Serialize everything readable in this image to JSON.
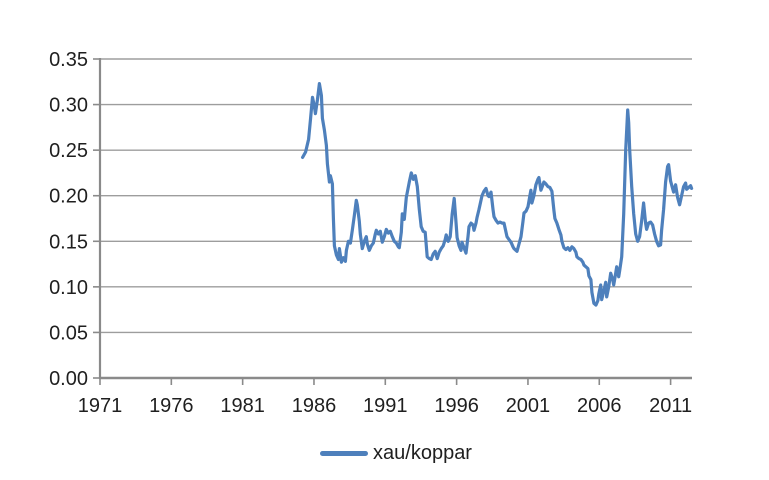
{
  "legend": {
    "label": "xau/koppar"
  },
  "colors": {
    "line": "#4E80BC",
    "grid": "#9D9D9D",
    "axis": "#8A8A8A",
    "text": "#1F1F1F",
    "background": "#FFFFFF"
  },
  "chart_data": {
    "type": "line",
    "title": "",
    "xlabel": "",
    "ylabel": "",
    "grid": "horizontal",
    "legend_position": "bottom-center",
    "x_tick_labels": [
      "1971",
      "1976",
      "1981",
      "1986",
      "1991",
      "1996",
      "2001",
      "2006",
      "2011"
    ],
    "x_tick_values": [
      1971,
      1976,
      1981,
      1986,
      1991,
      1996,
      2001,
      2006,
      2011
    ],
    "y_tick_labels": [
      "0.00",
      "0.05",
      "0.10",
      "0.15",
      "0.20",
      "0.25",
      "0.30",
      "0.35"
    ],
    "y_tick_values": [
      0.0,
      0.05,
      0.1,
      0.15,
      0.2,
      0.25,
      0.3,
      0.35
    ],
    "xlim": [
      1971,
      2012.5
    ],
    "ylim": [
      0,
      0.35
    ],
    "series": [
      {
        "name": "xau/koppar",
        "color": "#4E80BC",
        "x": [
          1985.2,
          1985.41,
          1985.62,
          1985.76,
          1985.9,
          1986.03,
          1986.1,
          1986.24,
          1986.38,
          1986.52,
          1986.59,
          1986.73,
          1986.87,
          1986.94,
          1987.08,
          1987.15,
          1987.29,
          1987.36,
          1987.43,
          1987.57,
          1987.71,
          1987.78,
          1987.92,
          1988.06,
          1988.2,
          1988.27,
          1988.41,
          1988.55,
          1988.69,
          1988.83,
          1988.97,
          1989.04,
          1989.18,
          1989.25,
          1989.39,
          1989.53,
          1989.67,
          1989.74,
          1989.88,
          1990.02,
          1990.16,
          1990.3,
          1990.37,
          1990.51,
          1990.65,
          1990.79,
          1990.93,
          1991.07,
          1991.21,
          1991.35,
          1991.49,
          1991.63,
          1991.77,
          1991.91,
          1991.98,
          1992.12,
          1992.19,
          1992.33,
          1992.47,
          1992.68,
          1992.82,
          1992.96,
          1993.1,
          1993.24,
          1993.38,
          1993.52,
          1993.66,
          1993.8,
          1993.94,
          1994.08,
          1994.22,
          1994.36,
          1994.5,
          1994.64,
          1994.78,
          1994.92,
          1995.06,
          1995.2,
          1995.27,
          1995.41,
          1995.55,
          1995.69,
          1995.83,
          1995.97,
          1996.03,
          1996.17,
          1996.31,
          1996.38,
          1996.52,
          1996.66,
          1996.8,
          1996.87,
          1997.01,
          1997.15,
          1997.22,
          1997.36,
          1997.43,
          1997.57,
          1997.78,
          1997.92,
          1998.06,
          1998.2,
          1998.27,
          1998.41,
          1998.55,
          1998.62,
          1998.76,
          1998.9,
          1999.04,
          1999.18,
          1999.32,
          1999.46,
          1999.53,
          1999.67,
          1999.81,
          1999.95,
          2000.02,
          2000.16,
          2000.23,
          2000.37,
          2000.51,
          2000.65,
          2000.72,
          2000.86,
          2001.0,
          2001.14,
          2001.21,
          2001.28,
          2001.42,
          2001.56,
          2001.7,
          2001.77,
          2001.91,
          2002.05,
          2002.12,
          2002.26,
          2002.4,
          2002.54,
          2002.68,
          2002.82,
          2002.89,
          2003.03,
          2003.17,
          2003.31,
          2003.38,
          2003.52,
          2003.66,
          2003.8,
          2003.94,
          2004.08,
          2004.22,
          2004.36,
          2004.43,
          2004.57,
          2004.71,
          2004.85,
          2004.92,
          2005.06,
          2005.2,
          2005.27,
          2005.41,
          2005.48,
          2005.62,
          2005.76,
          2005.9,
          2005.97,
          2006.1,
          2006.17,
          2006.31,
          2006.45,
          2006.52,
          2006.66,
          2006.8,
          2006.94,
          2007.01,
          2007.15,
          2007.22,
          2007.36,
          2007.43,
          2007.57,
          2007.71,
          2007.85,
          2007.99,
          2008.06,
          2008.13,
          2008.27,
          2008.41,
          2008.55,
          2008.69,
          2008.83,
          2008.97,
          2009.11,
          2009.25,
          2009.32,
          2009.46,
          2009.6,
          2009.74,
          2009.88,
          2010.02,
          2010.16,
          2010.3,
          2010.37,
          2010.51,
          2010.65,
          2010.79,
          2010.86,
          2011.0,
          2011.14,
          2011.21,
          2011.35,
          2011.49,
          2011.63,
          2011.77,
          2011.91,
          2012.05,
          2012.12,
          2012.26,
          2012.4,
          2012.47
        ],
        "y": [
          0.242,
          0.248,
          0.262,
          0.285,
          0.308,
          0.298,
          0.29,
          0.305,
          0.323,
          0.31,
          0.285,
          0.272,
          0.255,
          0.235,
          0.215,
          0.222,
          0.213,
          0.175,
          0.145,
          0.135,
          0.13,
          0.142,
          0.127,
          0.132,
          0.128,
          0.14,
          0.15,
          0.148,
          0.162,
          0.178,
          0.195,
          0.19,
          0.172,
          0.158,
          0.142,
          0.15,
          0.155,
          0.147,
          0.14,
          0.145,
          0.148,
          0.158,
          0.162,
          0.158,
          0.161,
          0.149,
          0.155,
          0.163,
          0.159,
          0.161,
          0.155,
          0.15,
          0.148,
          0.144,
          0.143,
          0.16,
          0.18,
          0.174,
          0.198,
          0.215,
          0.225,
          0.218,
          0.222,
          0.21,
          0.185,
          0.166,
          0.161,
          0.16,
          0.133,
          0.131,
          0.13,
          0.136,
          0.139,
          0.131,
          0.138,
          0.142,
          0.145,
          0.152,
          0.157,
          0.15,
          0.155,
          0.18,
          0.197,
          0.168,
          0.154,
          0.145,
          0.14,
          0.149,
          0.143,
          0.137,
          0.155,
          0.166,
          0.17,
          0.168,
          0.162,
          0.17,
          0.176,
          0.185,
          0.2,
          0.205,
          0.208,
          0.2,
          0.199,
          0.204,
          0.185,
          0.177,
          0.173,
          0.17,
          0.171,
          0.17,
          0.17,
          0.16,
          0.155,
          0.152,
          0.149,
          0.144,
          0.142,
          0.14,
          0.139,
          0.147,
          0.155,
          0.172,
          0.181,
          0.183,
          0.188,
          0.2,
          0.206,
          0.192,
          0.2,
          0.212,
          0.218,
          0.22,
          0.206,
          0.212,
          0.215,
          0.213,
          0.21,
          0.209,
          0.205,
          0.184,
          0.175,
          0.17,
          0.163,
          0.157,
          0.15,
          0.143,
          0.141,
          0.143,
          0.14,
          0.144,
          0.142,
          0.138,
          0.133,
          0.131,
          0.13,
          0.127,
          0.124,
          0.122,
          0.12,
          0.112,
          0.108,
          0.094,
          0.082,
          0.08,
          0.085,
          0.092,
          0.102,
          0.086,
          0.095,
          0.105,
          0.089,
          0.1,
          0.115,
          0.108,
          0.102,
          0.115,
          0.122,
          0.111,
          0.118,
          0.133,
          0.18,
          0.25,
          0.294,
          0.28,
          0.25,
          0.21,
          0.18,
          0.158,
          0.15,
          0.155,
          0.172,
          0.192,
          0.17,
          0.163,
          0.17,
          0.171,
          0.168,
          0.158,
          0.15,
          0.145,
          0.146,
          0.162,
          0.185,
          0.215,
          0.232,
          0.234,
          0.216,
          0.208,
          0.204,
          0.212,
          0.198,
          0.19,
          0.2,
          0.21,
          0.214,
          0.207,
          0.209,
          0.211,
          0.208
        ]
      }
    ]
  }
}
